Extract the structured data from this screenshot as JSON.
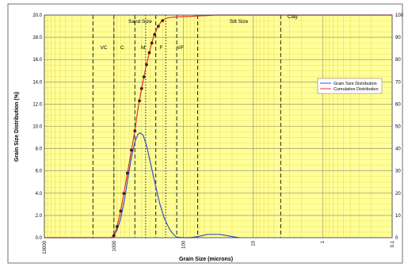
{
  "chart_data": {
    "type": "line",
    "title": "",
    "xlabel": "Grain Size (microns)",
    "ylabel": "Grain Size Distribution (%)",
    "y2label": "",
    "x_scale": "log",
    "x_reversed": true,
    "xlim": [
      10000,
      0.1
    ],
    "ylim": [
      0,
      20
    ],
    "y2lim": [
      0,
      100
    ],
    "x_ticks": [
      "10000",
      "1000",
      "100",
      "10",
      "1",
      "0.1"
    ],
    "y_ticks": [
      "0.0",
      "2.0",
      "4.0",
      "6.0",
      "8.0",
      "10.0",
      "12.0",
      "14.0",
      "16.0",
      "18.0",
      "20.0"
    ],
    "y2_ticks": [
      "0",
      "10",
      "20",
      "30",
      "40",
      "50",
      "60",
      "70",
      "80",
      "90",
      "100"
    ],
    "grid": true,
    "legend": "right",
    "colors": {
      "background": "#ffff99",
      "minor_grid": "#e8d84a",
      "major_grid": "#8a8a70",
      "distribution": "#3050c8",
      "cumulative": "#e03030",
      "markers": "#402020",
      "boundaries": "#202020",
      "zone_boundaries": "#404040"
    },
    "size_classes": [
      {
        "label": "VC",
        "x": 1400
      },
      {
        "label": "C",
        "x": 760
      },
      {
        "label": "M",
        "x": 380
      },
      {
        "label": "F",
        "x": 210
      },
      {
        "label": "VF",
        "x": 110
      }
    ],
    "boundaries": {
      "dashed": [
        2000,
        1000,
        500,
        250,
        125,
        62.5,
        4
      ],
      "dotted": [
        350,
        180
      ]
    },
    "zones": [
      {
        "label": "Sand Size",
        "x": 420,
        "y": 19.3
      },
      {
        "label": "Silt Size",
        "x": 16,
        "y": 19.3
      },
      {
        "label": "Clay",
        "x": 2.7,
        "y": 19.7
      }
    ],
    "series": [
      {
        "name": "Grain Size Distribution",
        "axis": "left",
        "color": "#3050c8",
        "x": [
          1050,
          900,
          800,
          700,
          620,
          560,
          500,
          450,
          420,
          380,
          340,
          300,
          260,
          220,
          190,
          160,
          140,
          125,
          100,
          80,
          62,
          45,
          30,
          20,
          16
        ],
        "y": [
          0.0,
          0.7,
          1.7,
          3.5,
          5.6,
          7.2,
          8.6,
          9.3,
          9.4,
          9.2,
          8.3,
          6.8,
          5.0,
          3.1,
          1.8,
          0.8,
          0.3,
          0.05,
          0.0,
          0.0,
          0.1,
          0.3,
          0.3,
          0.1,
          0.0
        ]
      },
      {
        "name": "Cumulative Distribution",
        "axis": "right",
        "color": "#e03030",
        "x": [
          10000,
          1100,
          1000,
          900,
          800,
          700,
          600,
          500,
          450,
          400,
          350,
          300,
          270,
          240,
          210,
          180,
          150,
          120,
          100,
          80,
          62,
          45,
          35,
          25,
          10,
          1,
          0.1
        ],
        "y": [
          0,
          0,
          1,
          5,
          12,
          22,
          34,
          48,
          58,
          67,
          76,
          85,
          90,
          94,
          97,
          98.5,
          99,
          99.2,
          99.3,
          99.4,
          99.6,
          99.8,
          100,
          100,
          100,
          100,
          100
        ]
      }
    ],
    "markers": {
      "series": "Cumulative Distribution",
      "x": [
        1000,
        900,
        800,
        720,
        640,
        560,
        500,
        430,
        400,
        370,
        340,
        310,
        285,
        260,
        230,
        200
      ]
    }
  }
}
